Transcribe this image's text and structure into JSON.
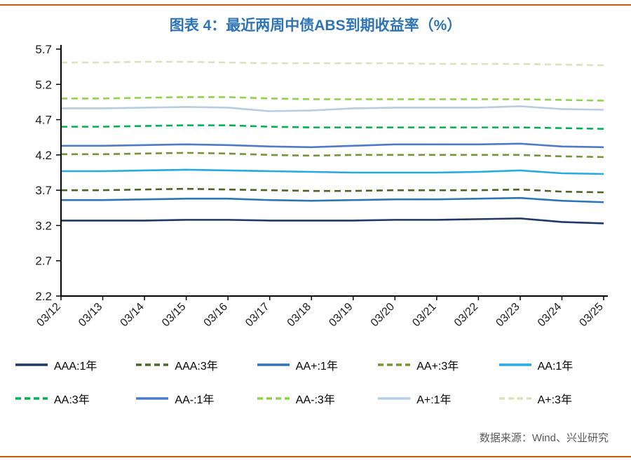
{
  "accent_rule_color": "#C55A11",
  "title_color": "#2E74B5",
  "source": "数据来源：Wind、兴业研究",
  "chart_data": {
    "type": "line",
    "title": "图表 4：最近两周中债ABS到期收益率（%）",
    "xlabel": "",
    "ylabel": "",
    "ylim": [
      2.2,
      5.7
    ],
    "yticks": [
      2.2,
      2.7,
      3.2,
      3.7,
      4.2,
      4.7,
      5.2,
      5.7
    ],
    "grid": false,
    "legend_position": "bottom",
    "x": [
      "03/12",
      "03/13",
      "03/14",
      "03/15",
      "03/16",
      "03/17",
      "03/18",
      "03/19",
      "03/20",
      "03/21",
      "03/22",
      "03/23",
      "03/24",
      "03/25"
    ],
    "series": [
      {
        "name": "AAA:1年",
        "color": "#1F3864",
        "dash": false,
        "values": [
          3.27,
          3.27,
          3.27,
          3.28,
          3.28,
          3.27,
          3.27,
          3.27,
          3.28,
          3.28,
          3.29,
          3.3,
          3.25,
          3.23
        ]
      },
      {
        "name": "AAA:3年",
        "color": "#4F6228",
        "dash": true,
        "values": [
          3.7,
          3.7,
          3.71,
          3.72,
          3.71,
          3.7,
          3.69,
          3.69,
          3.7,
          3.7,
          3.7,
          3.71,
          3.68,
          3.67
        ]
      },
      {
        "name": "AA+:1年",
        "color": "#2E75B6",
        "dash": false,
        "values": [
          3.56,
          3.56,
          3.57,
          3.58,
          3.58,
          3.56,
          3.55,
          3.56,
          3.57,
          3.57,
          3.58,
          3.59,
          3.55,
          3.53
        ]
      },
      {
        "name": "AA+:3年",
        "color": "#76933C",
        "dash": true,
        "values": [
          4.21,
          4.21,
          4.22,
          4.23,
          4.22,
          4.2,
          4.19,
          4.2,
          4.2,
          4.2,
          4.2,
          4.2,
          4.18,
          4.17
        ]
      },
      {
        "name": "AA:1年",
        "color": "#27AAE1",
        "dash": false,
        "values": [
          3.97,
          3.97,
          3.98,
          3.99,
          3.98,
          3.97,
          3.96,
          3.95,
          3.95,
          3.95,
          3.96,
          3.98,
          3.94,
          3.93
        ]
      },
      {
        "name": "AA:3年",
        "color": "#00B050",
        "dash": true,
        "values": [
          4.6,
          4.6,
          4.61,
          4.62,
          4.62,
          4.6,
          4.59,
          4.59,
          4.59,
          4.59,
          4.59,
          4.59,
          4.58,
          4.57
        ]
      },
      {
        "name": "AA-:1年",
        "color": "#4E7AC7",
        "dash": false,
        "values": [
          4.33,
          4.33,
          4.34,
          4.35,
          4.34,
          4.32,
          4.31,
          4.33,
          4.35,
          4.35,
          4.35,
          4.36,
          4.32,
          4.31
        ]
      },
      {
        "name": "AA-:3年",
        "color": "#92D050",
        "dash": true,
        "values": [
          5.0,
          5.0,
          5.01,
          5.02,
          5.02,
          5.0,
          4.99,
          4.99,
          4.99,
          4.99,
          4.99,
          4.99,
          4.98,
          4.97
        ]
      },
      {
        "name": "A+:1年",
        "color": "#B8CCE4",
        "dash": false,
        "values": [
          4.86,
          4.86,
          4.87,
          4.88,
          4.87,
          4.82,
          4.83,
          4.86,
          4.87,
          4.87,
          4.87,
          4.89,
          4.85,
          4.84
        ]
      },
      {
        "name": "A+:3年",
        "color": "#D7E4BD",
        "dash": true,
        "values": [
          5.51,
          5.51,
          5.52,
          5.52,
          5.51,
          5.5,
          5.5,
          5.5,
          5.5,
          5.49,
          5.49,
          5.49,
          5.48,
          5.47
        ]
      }
    ]
  }
}
